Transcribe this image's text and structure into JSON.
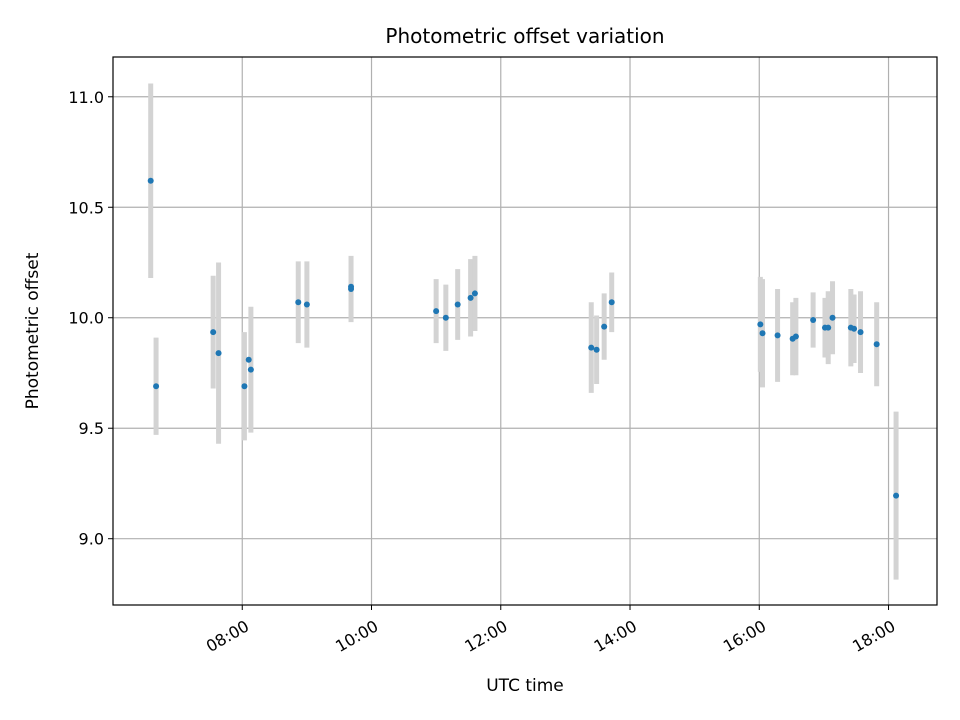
{
  "chart_data": {
    "type": "scatter",
    "title": "Photometric offset variation",
    "xlabel": "UTC time",
    "ylabel": "Photometric offset",
    "x_axis_kind": "time",
    "xlim": [
      "06:00",
      "18:45"
    ],
    "ylim": [
      8.7,
      11.18
    ],
    "x_ticks": [
      "08:00",
      "10:00",
      "12:00",
      "14:00",
      "16:00",
      "18:00"
    ],
    "y_ticks": [
      9.0,
      9.5,
      10.0,
      10.5,
      11.0
    ],
    "y_tick_labels": [
      "9.0",
      "9.5",
      "10.0",
      "10.5",
      "11.0"
    ],
    "grid": true,
    "point_color": "#1f77b4",
    "errorbar_color": "#d3d3d3",
    "points": [
      {
        "t": "06:35",
        "y": 10.62,
        "err": 0.44
      },
      {
        "t": "06:40",
        "y": 9.69,
        "err": 0.22
      },
      {
        "t": "07:33",
        "y": 9.935,
        "err": 0.255
      },
      {
        "t": "07:38",
        "y": 9.84,
        "err": 0.41
      },
      {
        "t": "08:02",
        "y": 9.69,
        "err": 0.245
      },
      {
        "t": "08:06",
        "y": 9.81,
        "err": 0.0
      },
      {
        "t": "08:08",
        "y": 9.765,
        "err": 0.285
      },
      {
        "t": "08:52",
        "y": 10.07,
        "err": 0.185
      },
      {
        "t": "09:00",
        "y": 10.06,
        "err": 0.195
      },
      {
        "t": "09:41",
        "y": 10.13,
        "err": 0.15
      },
      {
        "t": "09:41",
        "y": 10.14,
        "err": 0.0
      },
      {
        "t": "11:00",
        "y": 10.03,
        "err": 0.145
      },
      {
        "t": "11:09",
        "y": 10.0,
        "err": 0.15
      },
      {
        "t": "11:20",
        "y": 10.06,
        "err": 0.16
      },
      {
        "t": "11:32",
        "y": 10.09,
        "err": 0.175
      },
      {
        "t": "11:36",
        "y": 10.11,
        "err": 0.17
      },
      {
        "t": "13:24",
        "y": 9.865,
        "err": 0.205
      },
      {
        "t": "13:29",
        "y": 9.855,
        "err": 0.155
      },
      {
        "t": "13:36",
        "y": 9.96,
        "err": 0.15
      },
      {
        "t": "13:43",
        "y": 10.07,
        "err": 0.135
      },
      {
        "t": "16:01",
        "y": 9.97,
        "err": 0.215
      },
      {
        "t": "16:03",
        "y": 9.93,
        "err": 0.245
      },
      {
        "t": "16:17",
        "y": 9.92,
        "err": 0.21
      },
      {
        "t": "16:31",
        "y": 9.905,
        "err": 0.165
      },
      {
        "t": "16:34",
        "y": 9.915,
        "err": 0.175
      },
      {
        "t": "16:50",
        "y": 9.99,
        "err": 0.125
      },
      {
        "t": "17:01",
        "y": 9.955,
        "err": 0.135
      },
      {
        "t": "17:04",
        "y": 9.955,
        "err": 0.165
      },
      {
        "t": "17:08",
        "y": 10.0,
        "err": 0.165
      },
      {
        "t": "17:25",
        "y": 9.955,
        "err": 0.175
      },
      {
        "t": "17:28",
        "y": 9.95,
        "err": 0.155
      },
      {
        "t": "17:34",
        "y": 9.935,
        "err": 0.185
      },
      {
        "t": "17:49",
        "y": 9.88,
        "err": 0.19
      },
      {
        "t": "18:07",
        "y": 9.195,
        "err": 0.38
      }
    ]
  }
}
